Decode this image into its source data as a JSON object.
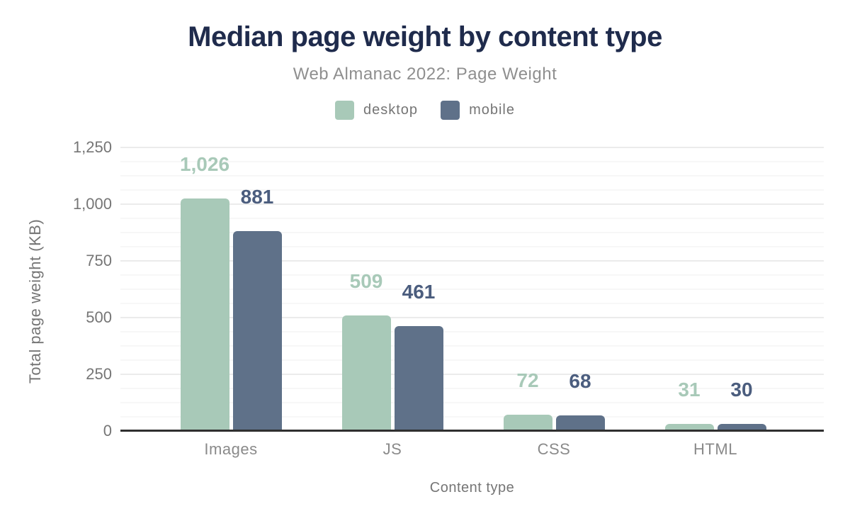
{
  "chart_data": {
    "type": "bar",
    "title": "Median page weight by content type",
    "subtitle": "Web Almanac 2022: Page Weight",
    "xlabel": "Content type",
    "ylabel": "Total page weight (KB)",
    "categories": [
      "Images",
      "JS",
      "CSS",
      "HTML"
    ],
    "series": [
      {
        "name": "desktop",
        "color": "#a8c9b8",
        "label_color": "#a8c9b8",
        "values": [
          1026,
          509,
          72,
          31
        ]
      },
      {
        "name": "mobile",
        "color": "#5f7189",
        "label_color": "#4b5d7e",
        "values": [
          881,
          461,
          68,
          30
        ]
      }
    ],
    "ylim": [
      0,
      1250
    ],
    "yticks": [
      0,
      250,
      500,
      750,
      1000,
      1250
    ],
    "minor_grid_step": 62.5,
    "grid": true,
    "legend_position": "top",
    "value_labels": true,
    "colors": {
      "title": "#1f2b4c",
      "subtitle": "#8f8f8f",
      "axis_text": "#757575",
      "category_text": "#8a8a8a",
      "axis_line": "#2f2f2f",
      "major_grid": "#ebebeb",
      "minor_grid": "#f7f7f7"
    }
  }
}
